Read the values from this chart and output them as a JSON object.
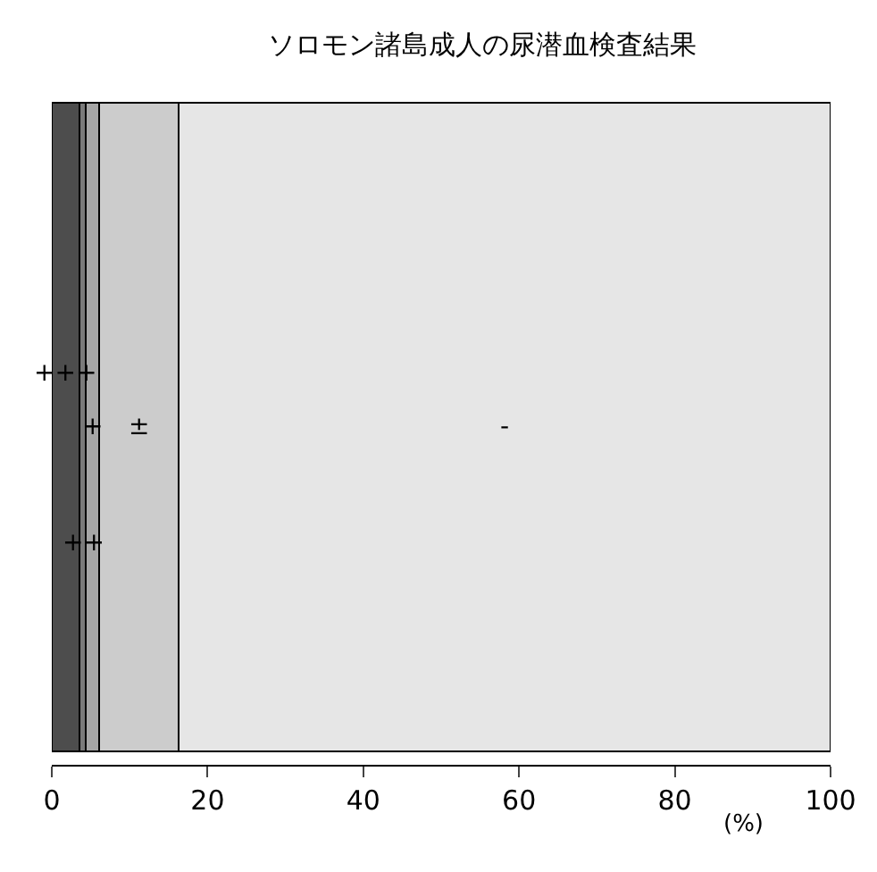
{
  "chart_data": {
    "type": "bar",
    "title": "ソロモン諸島成人の尿潜血検査結果",
    "xlabel": "(%)",
    "orientation": "horizontal",
    "stacked": true,
    "categories": [
      null
    ],
    "series": [
      {
        "name": "+++",
        "color": "#4d4d4d",
        "values": [
          3.5
        ]
      },
      {
        "name": "++",
        "color": "#7a7a7a",
        "values": [
          0.9
        ]
      },
      {
        "name": "+",
        "color": "#a6a6a6",
        "values": [
          1.7
        ]
      },
      {
        "name": "±",
        "color": "#cccccc",
        "values": [
          10.2
        ]
      },
      {
        "name": "-",
        "color": "#e6e6e6",
        "values": [
          83.7
        ]
      }
    ],
    "xlim": [
      0,
      100
    ],
    "xticks": [
      0,
      20,
      40,
      60,
      80,
      100
    ],
    "legend": false
  }
}
